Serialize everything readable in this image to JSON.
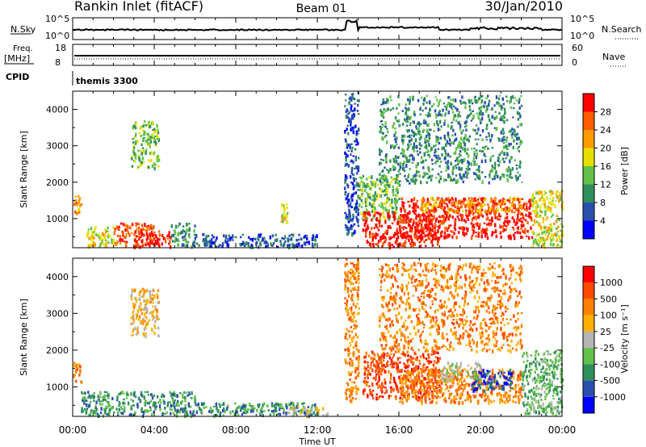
{
  "header": {
    "title": "Rankin Inlet (fitACF)",
    "beam": "Beam 01",
    "date": "30/Jan/2010"
  },
  "strips": {
    "nsky_label": "N.Sky",
    "nsky_ticks": [
      "10^5",
      "10^0"
    ],
    "nsearch_label": "N.Search",
    "nsearch_ticks": [
      "10^5",
      "10^0"
    ],
    "freq_label": "Freq.",
    "freq_unit": "[MHz]",
    "freq_ticks": [
      "18",
      "8"
    ],
    "nave_label": "Nave",
    "nave_ticks": [
      "60",
      "0"
    ],
    "cpid_label": "CPID",
    "cpid_value": "themis 3300"
  },
  "x_axis": {
    "tick_labels": [
      "00:00",
      "04:00",
      "08:00",
      "12:00",
      "16:00",
      "20:00",
      "00:00"
    ],
    "label": "Time UT"
  },
  "chart_data": [
    {
      "type": "heatmap",
      "name": "power",
      "xlabel": "Time UT",
      "ylabel": "Slant Range [km]",
      "x_range_hours": [
        0,
        24
      ],
      "y_range_km": [
        200,
        4500
      ],
      "y_ticks": [
        1000,
        2000,
        3000,
        4000
      ],
      "colorbar": {
        "label": "Power [dB]",
        "ticks": [
          "28",
          "24",
          "20",
          "16",
          "12",
          "8",
          "4"
        ],
        "colors": [
          "#0000ff",
          "#2a4fb0",
          "#2f8f5a",
          "#62c14a",
          "#e6e000",
          "#ff9a00",
          "#ff5a00",
          "#ff0000"
        ]
      },
      "regions": [
        {
          "t0": 0.0,
          "t1": 0.4,
          "r0": 1100,
          "r1": 1700,
          "level": 5
        },
        {
          "t0": 0.6,
          "t1": 2.0,
          "r0": 250,
          "r1": 800,
          "level": 4
        },
        {
          "t0": 2.0,
          "t1": 4.0,
          "r0": 250,
          "r1": 900,
          "level": 6
        },
        {
          "t0": 3.0,
          "t1": 4.8,
          "r0": 250,
          "r1": 700,
          "level": 7
        },
        {
          "t0": 2.8,
          "t1": 4.2,
          "r0": 2400,
          "r1": 3700,
          "level": 3
        },
        {
          "t0": 4.8,
          "t1": 6.0,
          "r0": 250,
          "r1": 900,
          "level": 2
        },
        {
          "t0": 6.0,
          "t1": 12.0,
          "r0": 250,
          "r1": 600,
          "level": 1
        },
        {
          "t0": 10.2,
          "t1": 10.5,
          "r0": 900,
          "r1": 1500,
          "level": 4
        },
        {
          "t0": 13.3,
          "t1": 14.0,
          "r0": 600,
          "r1": 4500,
          "level": 1
        },
        {
          "t0": 14.0,
          "t1": 16.0,
          "r0": 1000,
          "r1": 2200,
          "level": 3
        },
        {
          "t0": 14.2,
          "t1": 18.0,
          "r0": 250,
          "r1": 1200,
          "level": 7
        },
        {
          "t0": 16.0,
          "t1": 22.5,
          "r0": 500,
          "r1": 1600,
          "level": 7
        },
        {
          "t0": 17.0,
          "t1": 22.0,
          "r0": 1200,
          "r1": 1600,
          "level": 5
        },
        {
          "t0": 22.5,
          "t1": 24.0,
          "r0": 250,
          "r1": 1800,
          "level": 4
        },
        {
          "t0": 15.0,
          "t1": 22.0,
          "r0": 2000,
          "r1": 4400,
          "level": 2
        }
      ]
    },
    {
      "type": "heatmap",
      "name": "velocity",
      "xlabel": "Time UT",
      "ylabel": "Slant Range [km]",
      "x_range_hours": [
        0,
        24
      ],
      "y_range_km": [
        200,
        4500
      ],
      "y_ticks": [
        1000,
        2000,
        3000,
        4000
      ],
      "colorbar": {
        "label": "Velocity [m s⁻¹]",
        "ticks": [
          "1000",
          "500",
          "100",
          "25",
          "-25",
          "-100",
          "-500",
          "-1000"
        ],
        "colors": [
          "#0000ff",
          "#2a4fb0",
          "#2f8f5a",
          "#62c14a",
          "#b4b4b4",
          "#ffb000",
          "#ff8000",
          "#ff4a00",
          "#ff0000"
        ]
      },
      "regions": [
        {
          "t0": 0.0,
          "t1": 0.4,
          "r0": 1100,
          "r1": 1700,
          "level": 6
        },
        {
          "t0": 0.4,
          "t1": 6.0,
          "r0": 250,
          "r1": 900,
          "level": 2
        },
        {
          "t0": 2.8,
          "t1": 4.2,
          "r0": 2400,
          "r1": 3700,
          "level": 5
        },
        {
          "t0": 6.0,
          "t1": 12.0,
          "r0": 250,
          "r1": 600,
          "level": 2
        },
        {
          "t0": 10.5,
          "t1": 12.5,
          "r0": 250,
          "r1": 500,
          "level": 4
        },
        {
          "t0": 13.3,
          "t1": 14.0,
          "r0": 600,
          "r1": 4500,
          "level": 6
        },
        {
          "t0": 14.2,
          "t1": 18.0,
          "r0": 700,
          "r1": 2000,
          "level": 7
        },
        {
          "t0": 16.0,
          "t1": 22.0,
          "r0": 600,
          "r1": 1500,
          "level": 6
        },
        {
          "t0": 19.5,
          "t1": 21.5,
          "r0": 900,
          "r1": 1500,
          "level": 1
        },
        {
          "t0": 18.0,
          "t1": 20.0,
          "r0": 1200,
          "r1": 1700,
          "level": 4
        },
        {
          "t0": 22.0,
          "t1": 24.0,
          "r0": 250,
          "r1": 2000,
          "level": 3
        },
        {
          "t0": 15.0,
          "t1": 22.0,
          "r0": 2000,
          "r1": 4400,
          "level": 6
        }
      ]
    }
  ]
}
